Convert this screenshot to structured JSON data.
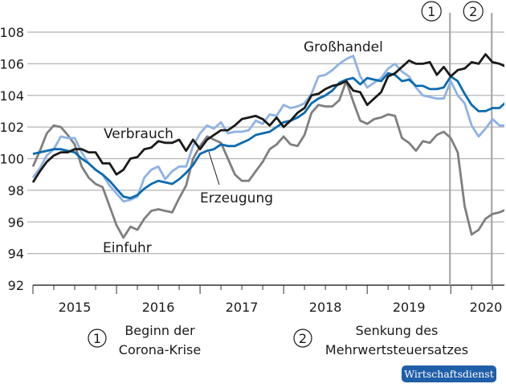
{
  "chart_data": {
    "type": "line",
    "title": "",
    "xlabel": "",
    "ylabel": "",
    "ylim": [
      92,
      108
    ],
    "yticks": [
      "92",
      "94",
      "96",
      "98",
      "100",
      "102",
      "104",
      "106",
      "108"
    ],
    "x_start": "2015-01",
    "x_frequency": "monthly",
    "xtick_labels": [
      "2015",
      "2016",
      "2017",
      "2018",
      "2019",
      "2020"
    ],
    "grid": true,
    "series": [
      {
        "name": "Verbrauch",
        "color": "#1a1a1a",
        "values": [
          98.5,
          99.2,
          99.8,
          100.2,
          100.4,
          100.4,
          100.6,
          100.6,
          100.4,
          100.4,
          99.7,
          99.7,
          99.0,
          99.3,
          100.0,
          100.1,
          100.6,
          100.7,
          101.1,
          101.0,
          101.0,
          101.2,
          100.5,
          101.2,
          100.6,
          101.2,
          101.5,
          101.8,
          101.8,
          102.1,
          102.5,
          102.6,
          102.7,
          102.5,
          102.1,
          102.6,
          102.0,
          102.4,
          102.9,
          103.2,
          104.0,
          104.1,
          104.4,
          104.6,
          104.7,
          104.9,
          104.3,
          104.2,
          103.4,
          103.8,
          104.2,
          105.2,
          105.4,
          105.8,
          106.2,
          106.0,
          106.0,
          106.1,
          105.3,
          105.8,
          105.2,
          105.6,
          105.7,
          106.1,
          106.0,
          106.6,
          106.1,
          106.0,
          105.8
        ]
      },
      {
        "name": "Erzeugung",
        "color": "#0a6ab0",
        "values": [
          100.3,
          100.4,
          100.5,
          100.6,
          100.6,
          100.5,
          100.4,
          100.0,
          99.7,
          99.3,
          99.0,
          98.6,
          98.1,
          97.6,
          97.5,
          97.7,
          98.1,
          98.4,
          98.6,
          98.5,
          98.4,
          98.7,
          99.1,
          99.6,
          100.3,
          100.5,
          100.6,
          100.9,
          100.8,
          100.8,
          101.0,
          101.2,
          101.5,
          101.6,
          101.7,
          102.0,
          102.3,
          102.4,
          102.6,
          102.9,
          103.5,
          103.8,
          104.0,
          104.3,
          104.8,
          105.0,
          105.1,
          104.7,
          105.1,
          105.0,
          104.9,
          105.4,
          105.3,
          104.9,
          105.0,
          104.6,
          104.6,
          104.4,
          104.4,
          104.5,
          105.2,
          104.9,
          104.1,
          103.4,
          103.0,
          103.0,
          103.2,
          103.2,
          103.6
        ]
      },
      {
        "name": "Großhandel",
        "color": "#8fb2e3",
        "values": [
          98.8,
          99.4,
          100.2,
          100.6,
          101.4,
          101.3,
          101.3,
          100.4,
          99.7,
          99.3,
          99.0,
          98.3,
          97.8,
          97.3,
          97.4,
          97.6,
          98.8,
          99.3,
          99.5,
          98.7,
          99.2,
          99.5,
          99.5,
          100.8,
          101.6,
          102.1,
          101.9,
          102.3,
          101.6,
          101.7,
          101.7,
          101.8,
          102.4,
          102.2,
          102.8,
          102.7,
          103.4,
          103.2,
          103.3,
          103.5,
          104.1,
          105.2,
          105.3,
          105.6,
          106.0,
          106.3,
          106.5,
          105.2,
          104.5,
          104.8,
          105.1,
          105.7,
          106.0,
          105.5,
          105.2,
          104.5,
          104.0,
          103.9,
          103.8,
          103.8,
          104.9,
          104.0,
          103.5,
          102.1,
          101.4,
          101.9,
          102.5,
          102.1,
          102.1
        ]
      },
      {
        "name": "Einfuhr",
        "color": "#7f7f7f",
        "values": [
          99.5,
          100.5,
          101.6,
          102.1,
          102.0,
          101.5,
          100.9,
          99.5,
          98.8,
          98.4,
          98.2,
          97.0,
          95.8,
          95.0,
          95.7,
          95.5,
          96.2,
          96.7,
          96.8,
          96.7,
          96.6,
          97.5,
          98.3,
          100.0,
          100.8,
          101.4,
          101.2,
          101.0,
          100.0,
          99.0,
          98.6,
          98.6,
          99.2,
          99.8,
          100.6,
          100.9,
          101.4,
          100.9,
          100.8,
          101.5,
          102.9,
          103.4,
          103.3,
          103.3,
          103.7,
          104.9,
          103.6,
          102.4,
          102.2,
          102.5,
          102.6,
          102.8,
          102.7,
          101.3,
          101.0,
          100.5,
          101.1,
          101.0,
          101.5,
          101.7,
          101.3,
          100.4,
          97.0,
          95.2,
          95.5,
          96.2,
          96.5,
          96.6,
          96.8
        ]
      }
    ],
    "event_lines": [
      {
        "marker": "1",
        "at": "2020-01"
      },
      {
        "marker": "2",
        "at": "2020-07"
      }
    ],
    "series_labels": {
      "verbrauch": "Verbrauch",
      "erzeugung": "Erzeugung",
      "grosshandel": "Großhandel",
      "einfuhr": "Einfuhr"
    }
  },
  "notes": [
    {
      "marker": "1",
      "line1": "Beginn der",
      "line2": "Corona-Krise"
    },
    {
      "marker": "2",
      "line1": "Senkung des",
      "line2": "Mehrwertsteuersatzes"
    }
  ],
  "badge": "Wirtschaftsdienst"
}
